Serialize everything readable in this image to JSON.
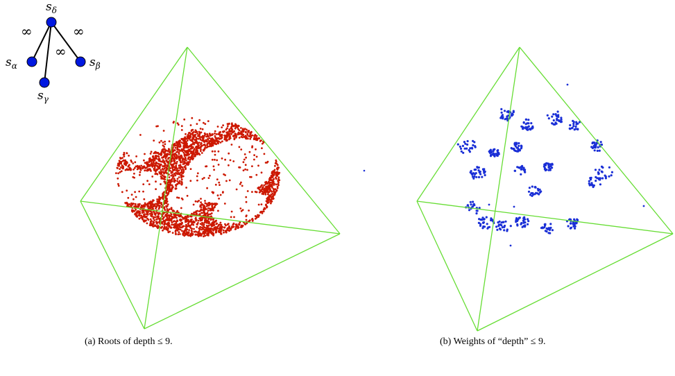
{
  "diagram": {
    "nodes": [
      {
        "id": "delta",
        "label_base": "s",
        "label_sub": "δ"
      },
      {
        "id": "alpha",
        "label_base": "s",
        "label_sub": "α"
      },
      {
        "id": "beta",
        "label_base": "s",
        "label_sub": "β"
      },
      {
        "id": "gamma",
        "label_base": "s",
        "label_sub": "γ"
      }
    ],
    "edge_labels": [
      "∞",
      "∞",
      "∞"
    ],
    "node_color": "#0018e0"
  },
  "panels": [
    {
      "id": "a",
      "caption": "(a) Roots of depth ≤ 9.",
      "point_color": "#cc1800",
      "edge_color": "#66dd33"
    },
    {
      "id": "b",
      "caption": "(b) Weights of “depth” ≤ 9.",
      "point_color": "#1a2fd6",
      "edge_color": "#66dd33"
    }
  ]
}
